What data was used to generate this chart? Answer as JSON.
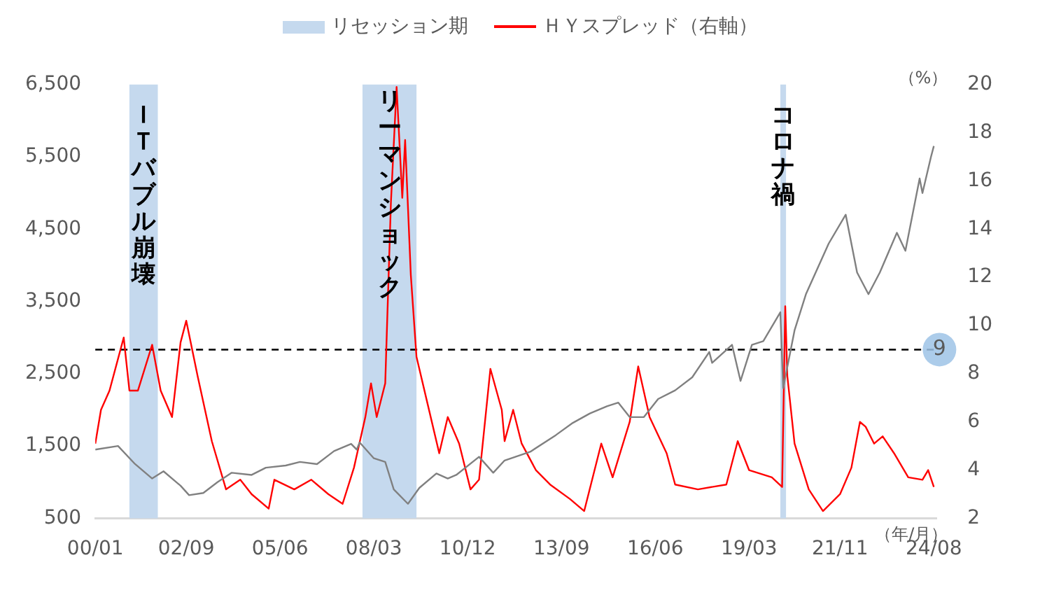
{
  "chart_data": {
    "type": "line",
    "legend": "top",
    "xlabel": "（年/月）",
    "y2label": "（%）",
    "xlim": [
      "2000-01",
      "2024-09"
    ],
    "xticks": [
      {
        "value": "2000-01",
        "label": "00/01"
      },
      {
        "value": "2002-09",
        "label": "02/09"
      },
      {
        "value": "2005-06",
        "label": "05/06"
      },
      {
        "value": "2008-03",
        "label": "08/03"
      },
      {
        "value": "2010-12",
        "label": "10/12"
      },
      {
        "value": "2013-09",
        "label": "13/09"
      },
      {
        "value": "2016-06",
        "label": "16/06"
      },
      {
        "value": "2019-03",
        "label": "19/03"
      },
      {
        "value": "2021-11",
        "label": "21/11"
      },
      {
        "value": "2024-08",
        "label": "24/08"
      }
    ],
    "ylim": [
      500,
      6500
    ],
    "yticks": [
      {
        "value": 500,
        "label": "500"
      },
      {
        "value": 1500,
        "label": "1,500"
      },
      {
        "value": 2500,
        "label": "2,500"
      },
      {
        "value": 3500,
        "label": "3,500"
      },
      {
        "value": 4500,
        "label": "4,500"
      },
      {
        "value": 5500,
        "label": "5,500"
      },
      {
        "value": 6500,
        "label": "6,500"
      }
    ],
    "y2lim": [
      2,
      20
    ],
    "y2ticks": [
      2,
      4,
      6,
      8,
      10,
      12,
      14,
      16,
      18,
      20
    ],
    "series": [
      {
        "color": "#808080",
        "x": [
          "2000-01",
          "2000-09",
          "2001-03",
          "2001-09",
          "2002-01",
          "2002-07",
          "2002-10",
          "2003-03",
          "2003-08",
          "2004-01",
          "2004-08",
          "2005-01",
          "2005-08",
          "2006-01",
          "2006-07",
          "2007-01",
          "2007-07",
          "2007-09",
          "2007-10",
          "2008-03",
          "2008-07",
          "2008-10",
          "2009-03",
          "2009-07",
          "2010-01",
          "2010-05",
          "2010-08",
          "2011-04",
          "2011-09",
          "2012-01",
          "2012-10",
          "2013-07",
          "2014-01",
          "2014-07",
          "2015-01",
          "2015-05",
          "2015-09",
          "2016-02",
          "2016-07",
          "2017-01",
          "2017-07",
          "2018-01",
          "2018-02",
          "2018-09",
          "2018-12",
          "2019-04",
          "2019-08",
          "2020-02",
          "2020-03",
          "2020-07",
          "2020-11",
          "2021-07",
          "2022-01",
          "2022-05",
          "2022-09",
          "2023-01",
          "2023-07",
          "2023-10",
          "2024-03",
          "2024-04",
          "2024-07",
          "2024-08"
        ],
        "values": [
          1450,
          1500,
          1250,
          1050,
          1150,
          950,
          820,
          850,
          1000,
          1130,
          1100,
          1200,
          1230,
          1280,
          1250,
          1430,
          1530,
          1450,
          1550,
          1330,
          1280,
          900,
          700,
          920,
          1120,
          1050,
          1100,
          1350,
          1130,
          1300,
          1420,
          1650,
          1820,
          1950,
          2050,
          2100,
          1900,
          1900,
          2150,
          2270,
          2450,
          2800,
          2650,
          2900,
          2400,
          2900,
          2950,
          3350,
          2300,
          3100,
          3600,
          4300,
          4700,
          3900,
          3600,
          3900,
          4450,
          4200,
          5200,
          5000,
          5500,
          5650
        ]
      },
      {
        "name": "ＨＹスプレッド（右軸）",
        "color": "#ff0000",
        "axis": "y2",
        "x": [
          "2000-01",
          "2000-03",
          "2000-06",
          "2000-11",
          "2001-01",
          "2001-04",
          "2001-09",
          "2001-12",
          "2002-04",
          "2002-07",
          "2002-09",
          "2003-01",
          "2003-06",
          "2003-11",
          "2004-04",
          "2004-08",
          "2005-02",
          "2005-04",
          "2005-11",
          "2006-05",
          "2006-11",
          "2007-04",
          "2007-08",
          "2007-12",
          "2008-02",
          "2008-04",
          "2008-07",
          "2008-09",
          "2008-11",
          "2009-01",
          "2009-02",
          "2009-04",
          "2009-06",
          "2009-10",
          "2010-02",
          "2010-05",
          "2010-09",
          "2011-01",
          "2011-04",
          "2011-08",
          "2011-12",
          "2012-01",
          "2012-04",
          "2012-07",
          "2012-12",
          "2013-05",
          "2013-12",
          "2014-05",
          "2014-11",
          "2015-03",
          "2015-09",
          "2015-12",
          "2016-04",
          "2016-10",
          "2017-01",
          "2017-09",
          "2018-07",
          "2018-11",
          "2019-03",
          "2019-11",
          "2020-02-20",
          "2020-03-23",
          "2020-04-15",
          "2020-07",
          "2020-12",
          "2021-05",
          "2021-11",
          "2022-03",
          "2022-06",
          "2022-08",
          "2022-11",
          "2023-02",
          "2023-06",
          "2023-11",
          "2024-04",
          "2024-06",
          "2024-08"
        ],
        "values": [
          5.1,
          6.5,
          7.3,
          9.5,
          7.3,
          7.3,
          9.2,
          7.3,
          6.2,
          9.3,
          10.2,
          7.9,
          5.2,
          3.2,
          3.6,
          3.0,
          2.4,
          3.6,
          3.2,
          3.6,
          3.0,
          2.6,
          4.1,
          6.2,
          7.6,
          6.2,
          7.6,
          15.1,
          19.9,
          15.3,
          17.7,
          12.1,
          8.7,
          6.7,
          4.7,
          6.2,
          5.1,
          3.2,
          3.6,
          8.2,
          6.5,
          5.2,
          6.5,
          5.1,
          4.0,
          3.4,
          2.8,
          2.3,
          5.1,
          3.7,
          6.0,
          8.3,
          6.2,
          4.7,
          3.4,
          3.2,
          3.4,
          5.2,
          4.0,
          3.7,
          3.3,
          10.8,
          7.9,
          5.1,
          3.2,
          2.3,
          3.0,
          4.1,
          6.0,
          5.8,
          5.1,
          5.4,
          4.7,
          3.7,
          3.6,
          4.0,
          3.3
        ]
      }
    ],
    "bands": [
      {
        "axis": "x",
        "from": "2001-01",
        "to": "2001-11",
        "label": "リセッション期",
        "color": "#c5d9ee"
      },
      {
        "axis": "x",
        "from": "2007-11",
        "to": "2009-06",
        "color": "#c5d9ee"
      },
      {
        "axis": "x",
        "from": "2020-02",
        "to": "2020-04",
        "color": "#c5d9ee"
      }
    ],
    "ref_lines": [
      {
        "axis": "y2",
        "value": 9,
        "label": "9",
        "color": "#000000",
        "line_style": "dashed"
      }
    ],
    "annotations": [
      "ＩＴバブル崩壊",
      "リーマンショック",
      "コロナ禍"
    ]
  }
}
